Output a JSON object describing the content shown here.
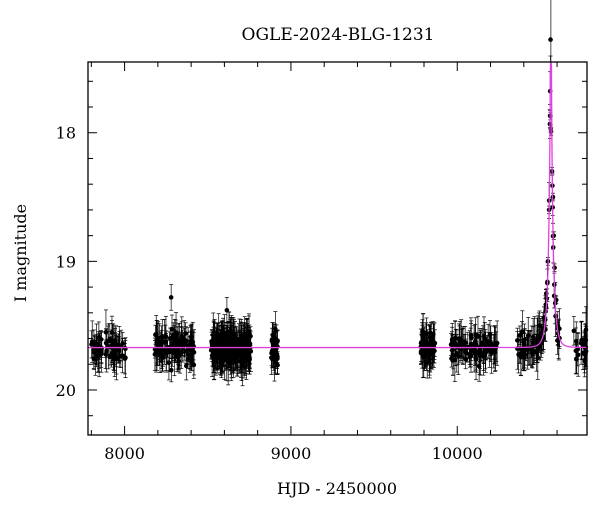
{
  "chart_data": {
    "type": "scatter",
    "title": "OGLE-2024-BLG-1231",
    "xlabel": "HJD - 2450000",
    "ylabel": "I magnitude",
    "xlim": [
      7780,
      10780
    ],
    "ylim": [
      20.35,
      17.45
    ],
    "y_inverted": true,
    "x_major_ticks": [
      8000,
      9000,
      10000
    ],
    "x_minor_step": 200,
    "y_major_ticks": [
      18,
      19,
      20
    ],
    "y_minor_step": 0.2,
    "baseline_magnitude": 19.67,
    "model_curve": {
      "name": "microlensing model",
      "color": "#e040e0",
      "t0": 10563,
      "tE": 27,
      "u0": 0.06,
      "baseline": 19.67
    },
    "data_color": "#000000",
    "observing_seasons": [
      {
        "start": 7800,
        "end": 8010,
        "n_points": 70
      },
      {
        "start": 8180,
        "end": 8420,
        "n_points": 100
      },
      {
        "start": 8520,
        "end": 8760,
        "n_points": 260
      },
      {
        "start": 8880,
        "end": 8920,
        "n_points": 30
      },
      {
        "start": 9780,
        "end": 9870,
        "n_points": 55
      },
      {
        "start": 9960,
        "end": 10240,
        "n_points": 95
      },
      {
        "start": 10360,
        "end": 10620,
        "n_points": 90
      },
      {
        "start": 10700,
        "end": 10780,
        "n_points": 25
      }
    ],
    "peak_points": [
      {
        "x": 10560,
        "y": 17.87
      },
      {
        "x": 10562,
        "y": 17.97
      },
      {
        "x": 10564,
        "y": 17.99
      },
      {
        "x": 10570,
        "y": 18.3
      },
      {
        "x": 10575,
        "y": 18.5
      },
      {
        "x": 10580,
        "y": 18.8
      },
      {
        "x": 10552,
        "y": 18.6
      },
      {
        "x": 10545,
        "y": 19.0
      },
      {
        "x": 10535,
        "y": 19.25
      },
      {
        "x": 10585,
        "y": 19.05
      },
      {
        "x": 10595,
        "y": 19.3
      },
      {
        "x": 10605,
        "y": 19.5
      }
    ],
    "noted_outliers": [
      {
        "x": 8280,
        "y": 19.28
      },
      {
        "x": 8615,
        "y": 19.38
      }
    ]
  }
}
